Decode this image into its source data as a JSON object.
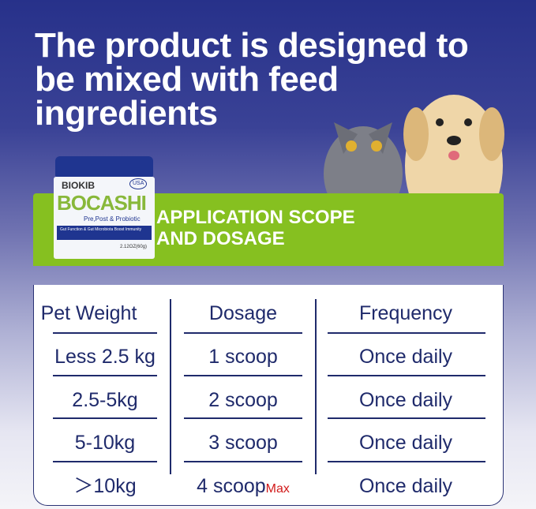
{
  "headline": "The product is designed to be mixed with feed ingredients",
  "banner": {
    "line1": "APPLICATION SCOPE",
    "line2": "AND DOSAGE",
    "color": "#86c020"
  },
  "product": {
    "brand": "BIOKIB",
    "name": "BOCASHI",
    "subtitle": "Pre,Post & Probiotic",
    "claim": "Gut Function & Gut Microbiota Boost Immunity",
    "badge": "USA",
    "net": "2.12OZ(60g)"
  },
  "table": {
    "headers": [
      "Pet Weight",
      "Dosage",
      "Frequency"
    ],
    "rows": [
      {
        "weight": "Less 2.5 kg",
        "dosage": "1 scoop",
        "frequency": "Once daily"
      },
      {
        "weight": "2.5-5kg",
        "dosage": "2 scoop",
        "frequency": "Once daily"
      },
      {
        "weight": "5-10kg",
        "dosage": "3 scoop",
        "frequency": "Once daily"
      },
      {
        "weight": "＞10kg",
        "dosage": "4 scoop",
        "note": "Max",
        "frequency": "Once daily"
      }
    ]
  }
}
